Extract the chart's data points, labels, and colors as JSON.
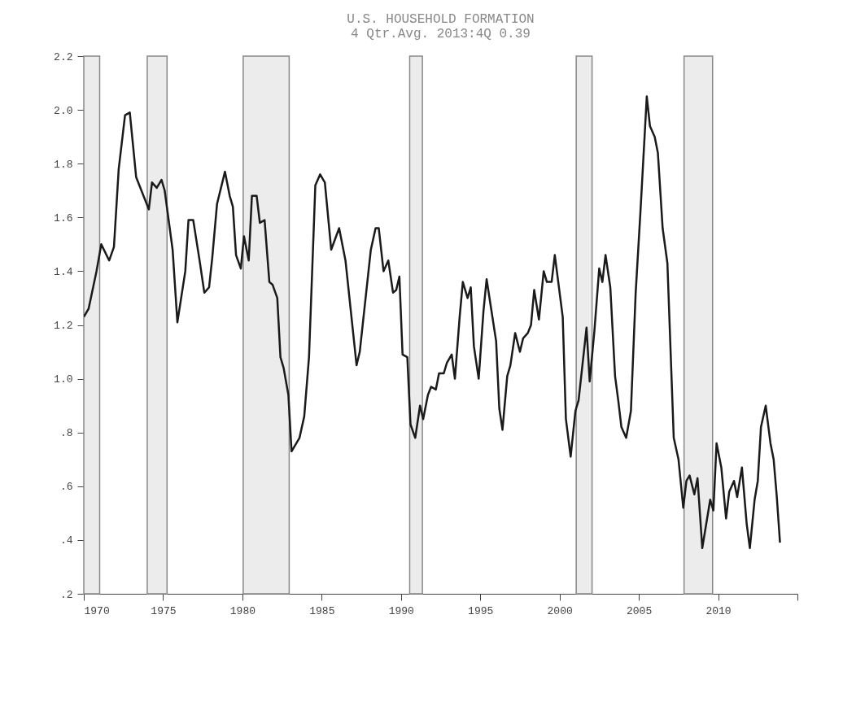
{
  "chart_data": {
    "type": "line",
    "title": "U.S. HOUSEHOLD FORMATION",
    "subtitle": "4 Qtr.Avg.   2013:4Q 0.39",
    "xlim": [
      1970,
      2015
    ],
    "xticks": [
      1970,
      1975,
      1980,
      1985,
      1990,
      1995,
      2000,
      2005,
      2010,
      {
        "value": 2015,
        "label": null
      }
    ],
    "ylim": [
      0.2,
      2.2
    ],
    "yticks": [
      {
        "value": 0.2,
        "label": ".2"
      },
      {
        "value": 0.4,
        "label": ".4"
      },
      {
        "value": 0.6,
        "label": ".6"
      },
      {
        "value": 0.8,
        "label": ".8"
      },
      {
        "value": 1.0,
        "label": "1.0"
      },
      {
        "value": 1.2,
        "label": "1.2"
      },
      {
        "value": 1.4,
        "label": "1.4"
      },
      {
        "value": 1.6,
        "label": "1.6"
      },
      {
        "value": 1.8,
        "label": "1.8"
      },
      {
        "value": 2.0,
        "label": "2.0"
      },
      {
        "value": 2.2,
        "label": "2.2"
      }
    ],
    "grid": false,
    "marker": "none",
    "line_style": "solid",
    "bands": [
      {
        "axis": "x",
        "from": 1970.0,
        "to": 1971.0,
        "color": "#ececec"
      },
      {
        "axis": "x",
        "from": 1974.0,
        "to": 1975.25,
        "color": "#ececec"
      },
      {
        "axis": "x",
        "from": 1980.05,
        "to": 1982.95,
        "color": "#ececec"
      },
      {
        "axis": "x",
        "from": 1990.55,
        "to": 1991.35,
        "color": "#ececec"
      },
      {
        "axis": "x",
        "from": 2001.05,
        "to": 2002.05,
        "color": "#ececec"
      },
      {
        "axis": "x",
        "from": 2007.85,
        "to": 2009.65,
        "color": "#ececec"
      }
    ],
    "series": [
      {
        "color": "#1a1a1a",
        "x": [
          1970.0,
          1970.3,
          1970.8,
          1971.1,
          1971.6,
          1971.9,
          1972.2,
          1972.6,
          1972.9,
          1973.3,
          1974.1,
          1974.3,
          1974.6,
          1974.9,
          1975.1,
          1975.6,
          1975.9,
          1976.4,
          1976.6,
          1976.9,
          1977.3,
          1977.6,
          1977.9,
          1978.1,
          1978.4,
          1978.9,
          1979.2,
          1979.4,
          1979.6,
          1979.9,
          1980.1,
          1980.4,
          1980.6,
          1980.9,
          1981.1,
          1981.4,
          1981.7,
          1981.9,
          1982.2,
          1982.4,
          1982.6,
          1982.9,
          1983.1,
          1983.6,
          1983.9,
          1984.2,
          1984.6,
          1984.9,
          1985.2,
          1985.6,
          1986.1,
          1986.5,
          1987.2,
          1987.4,
          1988.1,
          1988.4,
          1988.6,
          1988.9,
          1989.2,
          1989.5,
          1989.7,
          1989.9,
          1990.1,
          1990.4,
          1990.6,
          1990.9,
          1991.2,
          1991.4,
          1991.7,
          1991.9,
          1992.2,
          1992.4,
          1992.7,
          1992.9,
          1993.2,
          1993.4,
          1993.7,
          1993.9,
          1994.2,
          1994.4,
          1994.6,
          1994.9,
          1995.2,
          1995.4,
          1996.0,
          1996.2,
          1996.4,
          1996.7,
          1996.9,
          1997.2,
          1997.5,
          1997.7,
          1998.0,
          1998.2,
          1998.4,
          1998.7,
          1999.0,
          1999.2,
          1999.5,
          1999.7,
          2000.2,
          2000.4,
          2000.7,
          2001.0,
          2001.2,
          2001.7,
          2001.9,
          2002.2,
          2002.5,
          2002.7,
          2002.9,
          2003.2,
          2003.5,
          2003.7,
          2003.9,
          2004.2,
          2004.5,
          2004.8,
          2005.1,
          2005.5,
          2005.7,
          2006.0,
          2006.2,
          2006.5,
          2006.8,
          2007.2,
          2007.5,
          2007.8,
          2008.0,
          2008.2,
          2008.5,
          2008.7,
          2009.0,
          2009.5,
          2009.7,
          2009.9,
          2010.2,
          2010.5,
          2010.7,
          2011.0,
          2011.2,
          2011.5,
          2011.8,
          2012.0,
          2012.3,
          2012.5,
          2012.7,
          2013.0,
          2013.3,
          2013.5,
          2013.7,
          2013.9
        ],
        "values": [
          1.23,
          1.26,
          1.4,
          1.5,
          1.44,
          1.49,
          1.78,
          1.98,
          1.99,
          1.75,
          1.63,
          1.73,
          1.71,
          1.74,
          1.7,
          1.48,
          1.21,
          1.4,
          1.59,
          1.59,
          1.44,
          1.32,
          1.34,
          1.45,
          1.65,
          1.77,
          1.68,
          1.64,
          1.46,
          1.41,
          1.53,
          1.44,
          1.68,
          1.68,
          1.58,
          1.59,
          1.36,
          1.35,
          1.3,
          1.08,
          1.04,
          0.94,
          0.73,
          0.78,
          0.86,
          1.08,
          1.72,
          1.76,
          1.73,
          1.48,
          1.56,
          1.44,
          1.05,
          1.1,
          1.48,
          1.56,
          1.56,
          1.4,
          1.44,
          1.32,
          1.33,
          1.38,
          1.09,
          1.08,
          0.83,
          0.78,
          0.9,
          0.85,
          0.94,
          0.97,
          0.96,
          1.02,
          1.02,
          1.06,
          1.09,
          1.0,
          1.23,
          1.36,
          1.3,
          1.34,
          1.12,
          1.0,
          1.25,
          1.37,
          1.14,
          0.89,
          0.81,
          1.01,
          1.05,
          1.17,
          1.1,
          1.15,
          1.17,
          1.2,
          1.33,
          1.22,
          1.4,
          1.36,
          1.36,
          1.46,
          1.23,
          0.85,
          0.71,
          0.88,
          0.92,
          1.19,
          0.99,
          1.18,
          1.41,
          1.36,
          1.46,
          1.34,
          1.01,
          0.92,
          0.82,
          0.78,
          0.88,
          1.32,
          1.62,
          2.05,
          1.94,
          1.9,
          1.84,
          1.56,
          1.43,
          0.78,
          0.7,
          0.52,
          0.62,
          0.64,
          0.57,
          0.63,
          0.37,
          0.55,
          0.51,
          0.76,
          0.67,
          0.48,
          0.58,
          0.62,
          0.56,
          0.67,
          0.46,
          0.37,
          0.55,
          0.62,
          0.82,
          0.9,
          0.76,
          0.7,
          0.56,
          0.39
        ]
      }
    ]
  }
}
